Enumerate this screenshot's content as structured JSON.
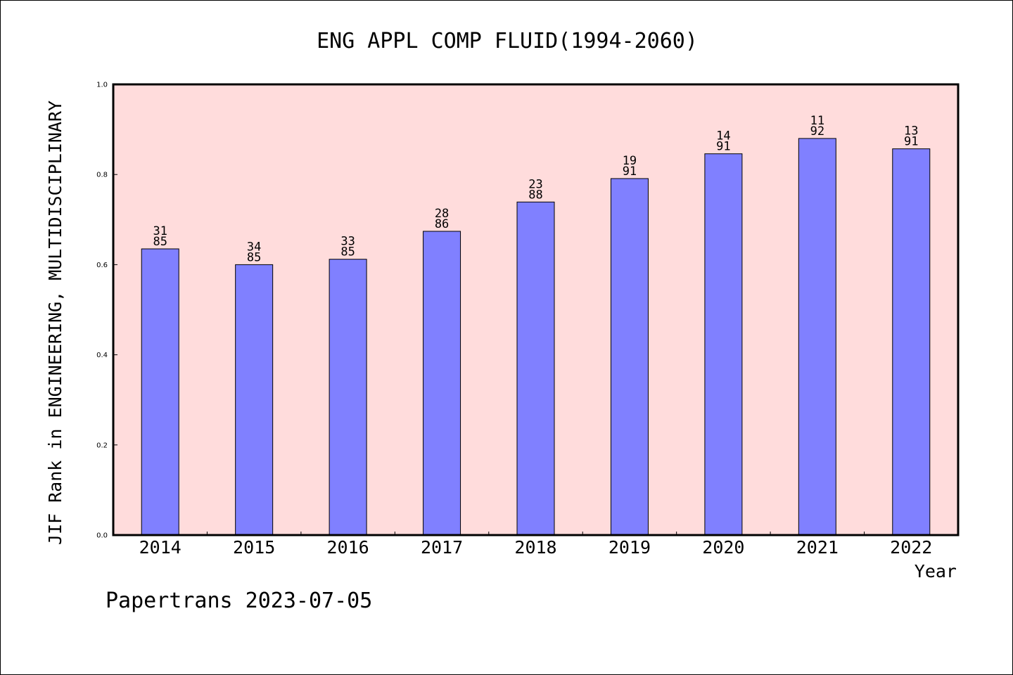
{
  "chart_data": {
    "type": "bar",
    "title": "ENG APPL COMP FLUID(1994-2060)",
    "xlabel": "Year",
    "ylabel": "JIF Rank in ENGINEERING, MULTIDISCIPLINARY",
    "ylim": [
      0,
      1.0
    ],
    "yticks": [
      "0.0",
      "0.2",
      "0.4",
      "0.6",
      "0.8",
      "1.0"
    ],
    "ytick_values": [
      0,
      0.2,
      0.4,
      0.6,
      0.8,
      1.0
    ],
    "categories": [
      "2014",
      "2015",
      "2016",
      "2017",
      "2018",
      "2019",
      "2020",
      "2021",
      "2022"
    ],
    "values": [
      0.635,
      0.6,
      0.612,
      0.674,
      0.739,
      0.791,
      0.846,
      0.88,
      0.857
    ],
    "rank_labels": [
      "31",
      "34",
      "33",
      "28",
      "23",
      "19",
      "14",
      "11",
      "13"
    ],
    "total_labels": [
      "85",
      "85",
      "85",
      "86",
      "88",
      "91",
      "91",
      "92",
      "91"
    ],
    "bar_color": "#8080ff",
    "plot_background": "#ffdcdc",
    "grid": false
  },
  "footer": {
    "credit": "Papertrans 2023-07-05"
  }
}
